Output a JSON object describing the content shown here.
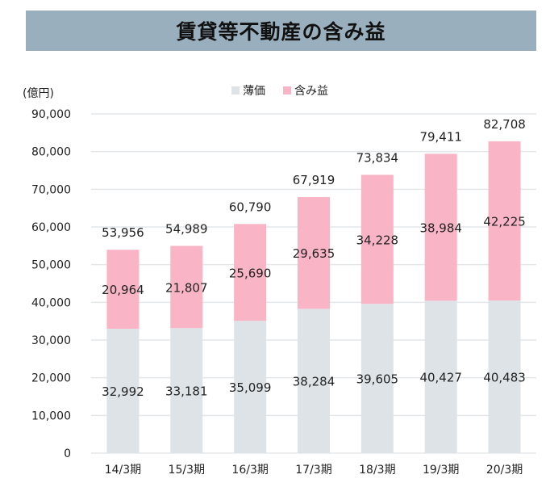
{
  "chart_data": {
    "type": "bar",
    "stacked": true,
    "title": "賃貸等不動産の含み益",
    "ylabel": "(億円)",
    "xlabel": "",
    "ylim": [
      0,
      90000
    ],
    "yticks": [
      0,
      10000,
      20000,
      30000,
      40000,
      50000,
      60000,
      70000,
      80000,
      90000
    ],
    "ytick_labels": [
      "0",
      "10,000",
      "20,000",
      "30,000",
      "40,000",
      "50,000",
      "60,000",
      "70,000",
      "80,000",
      "90,000"
    ],
    "grid": true,
    "legend_position": "top-center",
    "categories": [
      "14/3期",
      "15/3期",
      "16/3期",
      "17/3期",
      "18/3期",
      "19/3期",
      "20/3期"
    ],
    "series": [
      {
        "name": "薄価",
        "color": "#dde3e7",
        "values": [
          32992,
          33181,
          35099,
          38284,
          39605,
          40427,
          40483
        ],
        "labels": [
          "32,992",
          "33,181",
          "35,099",
          "38,284",
          "39,605",
          "40,427",
          "40,483"
        ]
      },
      {
        "name": "含み益",
        "color": "#f9b5c6",
        "values": [
          20964,
          21807,
          25690,
          29635,
          34228,
          38984,
          42225
        ],
        "labels": [
          "20,964",
          "21,807",
          "25,690",
          "29,635",
          "34,228",
          "38,984",
          "42,225"
        ]
      }
    ],
    "totals": [
      53956,
      54989,
      60790,
      67919,
      73834,
      79411,
      82708
    ],
    "total_labels": [
      "53,956",
      "54,989",
      "60,790",
      "67,919",
      "73,834",
      "79,411",
      "82,708"
    ]
  }
}
